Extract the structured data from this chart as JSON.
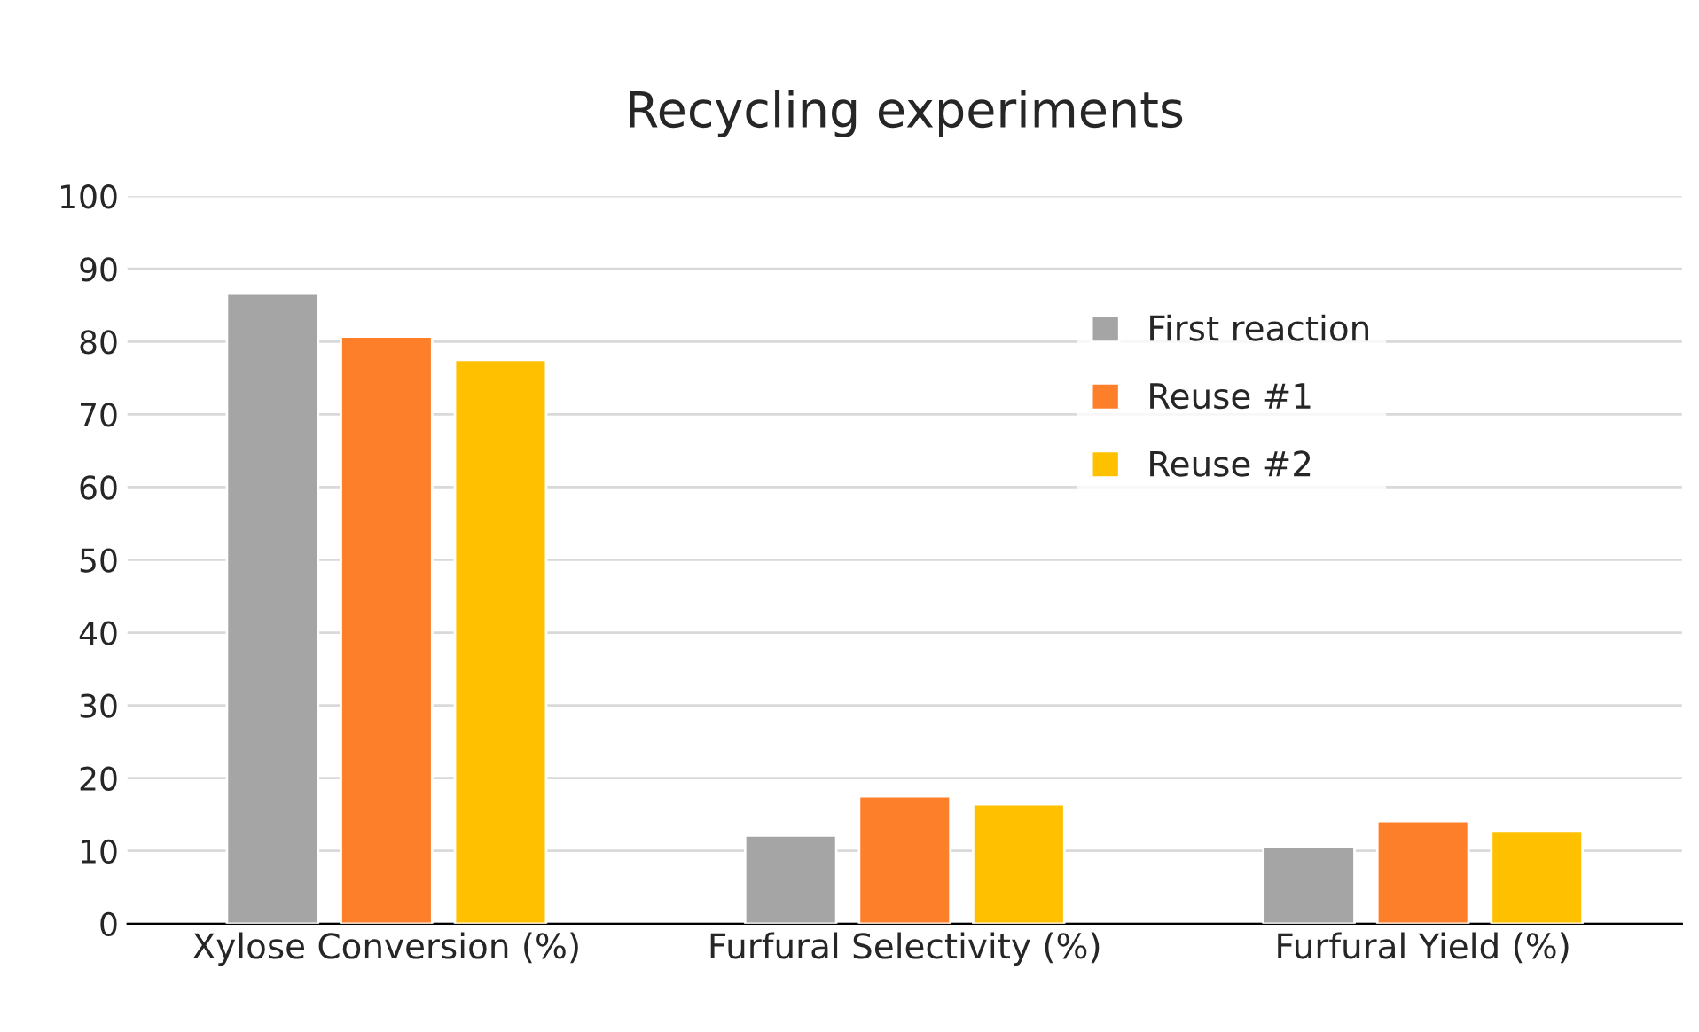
{
  "chart_data": {
    "type": "bar",
    "title": "Recycling experiments",
    "categories": [
      "Xylose Conversion (%)",
      "Furfural Selectivity (%)",
      "Furfural Yield (%)"
    ],
    "series": [
      {
        "name": "First reaction",
        "color": "#a5a5a5",
        "values": [
          86.6,
          12.1,
          10.6
        ]
      },
      {
        "name": "Reuse #1",
        "color": "#fe7f2a",
        "values": [
          80.7,
          17.5,
          14.1
        ]
      },
      {
        "name": "Reuse #2",
        "color": "#ffc000",
        "values": [
          77.5,
          16.4,
          12.8
        ]
      }
    ],
    "ylim": [
      0,
      100
    ],
    "yticks": [
      0,
      10,
      20,
      30,
      40,
      50,
      60,
      70,
      80,
      90,
      100
    ],
    "grid": "y",
    "legend": "top right"
  }
}
